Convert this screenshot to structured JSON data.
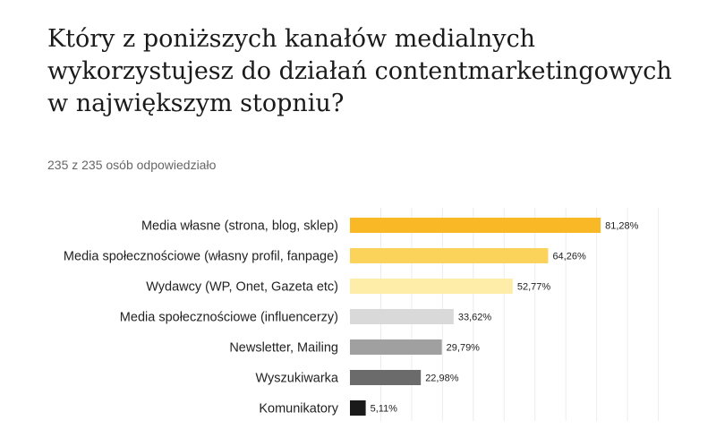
{
  "title": "Który z poniższych kanałów medialnych wykorzystujesz do działań contentmarketingowych w największym stopniu?",
  "subtitle": "235 z 235 osób odpowiedziało",
  "chart_data": {
    "type": "bar",
    "orientation": "horizontal",
    "categories": [
      "Media własne (strona, blog, sklep)",
      "Media społecznościowe (własny profil, fanpage)",
      "Wydawcy (WP, Onet, Gazeta etc)",
      "Media społecznościowe (influencerzy)",
      "Newsletter, Mailing",
      "Wyszukiwarka",
      "Komunikatory"
    ],
    "values": [
      81.28,
      64.26,
      52.77,
      33.62,
      29.79,
      22.98,
      5.11
    ],
    "value_labels": [
      "81,28%",
      "64,26%",
      "52,77%",
      "33,62%",
      "29,79%",
      "22,98%",
      "5,11%"
    ],
    "colors": [
      "#F9B926",
      "#FBD25A",
      "#FDEDA8",
      "#D9D9D9",
      "#A0A0A0",
      "#6B6B6B",
      "#1A1A1A"
    ],
    "xlim": [
      0,
      100
    ],
    "grid": true
  }
}
